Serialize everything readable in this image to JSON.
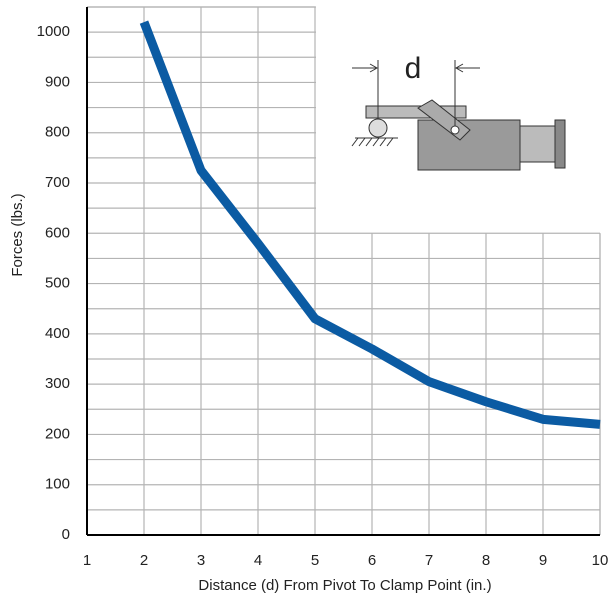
{
  "chart_data": {
    "type": "line",
    "y_label": "Forces (lbs.)",
    "x_label": "Distance (d) From Pivot To Clamp Point (in.)",
    "inset_label": "d",
    "x": [
      2,
      3,
      4,
      5,
      6,
      7,
      8,
      9,
      10
    ],
    "series": [
      {
        "name": "Force",
        "color": "#0b5ba3",
        "values": [
          1020,
          725,
          580,
          430,
          370,
          305,
          265,
          230,
          220
        ]
      }
    ],
    "xlim": [
      1,
      10
    ],
    "xticks": [
      1,
      2,
      3,
      4,
      5,
      6,
      7,
      8,
      9,
      10
    ],
    "ylim": [
      0,
      1050
    ],
    "yticks": [
      0,
      100,
      200,
      300,
      400,
      500,
      600,
      700,
      800,
      900,
      1000
    ],
    "yminorticks": [
      50,
      150,
      250,
      350,
      450,
      550,
      650,
      750,
      850,
      950,
      1050
    ],
    "grid": true
  }
}
